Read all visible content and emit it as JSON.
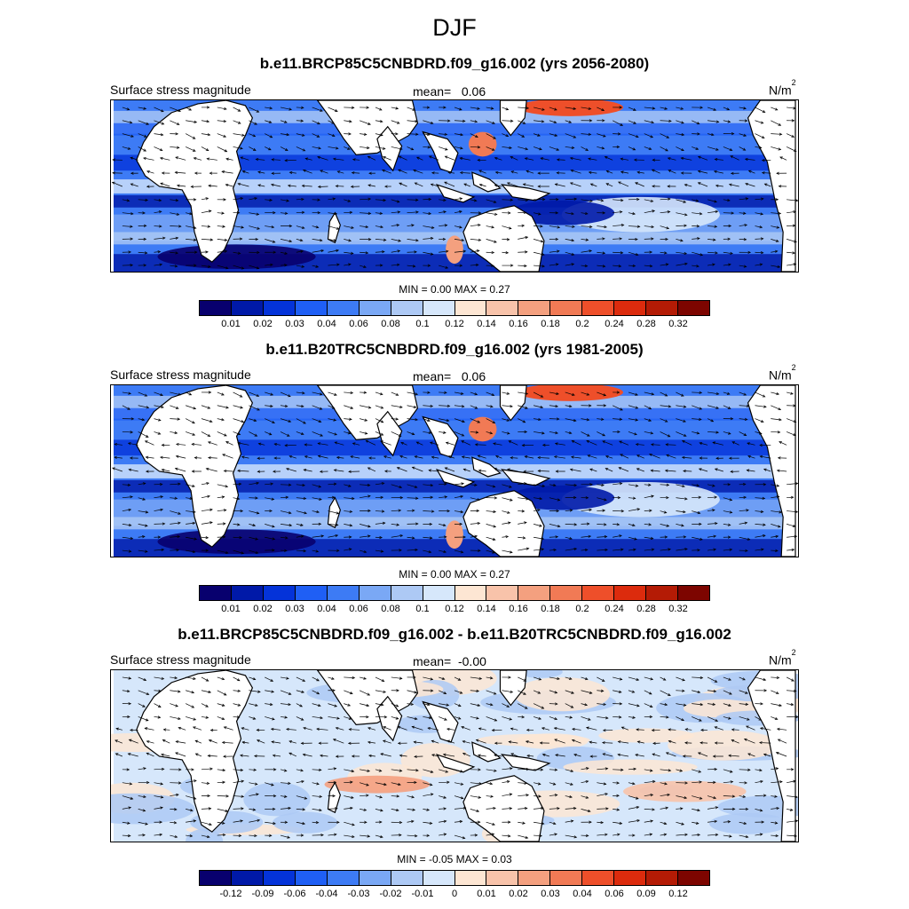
{
  "title": "DJF",
  "palette": [
    "#08006e",
    "#0019a8",
    "#0433d9",
    "#1f5ff5",
    "#3d7bf5",
    "#7aa8f5",
    "#adc9f5",
    "#d6e7fb",
    "#fde6d3",
    "#f8c3aa",
    "#f4a07f",
    "#f17a55",
    "#ee4f2a",
    "#dc2b0d",
    "#b41b05",
    "#7d0500"
  ],
  "land_color": "#ffffff",
  "panels": [
    {
      "title": "b.e11.BRCP85C5CNBDRD.f09_g16.002 (yrs 2056-2080)",
      "variable": "Surface stress magnitude",
      "mean_label": "mean=",
      "mean_value": "0.06",
      "unit": "N/m",
      "unit_exp": "2",
      "minmax": "MIN =   0.00 MAX =   0.27",
      "levels": [
        "0.01",
        "0.02",
        "0.03",
        "0.04",
        "0.06",
        "0.08",
        "0.1",
        "0.12",
        "0.14",
        "0.16",
        "0.18",
        "0.2",
        "0.24",
        "0.28",
        "0.32"
      ]
    },
    {
      "title": "b.e11.B20TRC5CNBDRD.f09_g16.002 (yrs 1981-2005)",
      "variable": "Surface stress magnitude",
      "mean_label": "mean=",
      "mean_value": "0.06",
      "unit": "N/m",
      "unit_exp": "2",
      "minmax": "MIN =   0.00 MAX =   0.27",
      "levels": [
        "0.01",
        "0.02",
        "0.03",
        "0.04",
        "0.06",
        "0.08",
        "0.1",
        "0.12",
        "0.14",
        "0.16",
        "0.18",
        "0.2",
        "0.24",
        "0.28",
        "0.32"
      ]
    },
    {
      "title": "b.e11.BRCP85C5CNBDRD.f09_g16.002 - b.e11.B20TRC5CNBDRD.f09_g16.002",
      "variable": "Surface stress magnitude",
      "mean_label": "mean=",
      "mean_value": "-0.00",
      "unit": "N/m",
      "unit_exp": "2",
      "minmax": "MIN =  -0.05 MAX =   0.03",
      "levels": [
        "-0.12",
        "-0.09",
        "-0.06",
        "-0.04",
        "-0.03",
        "-0.02",
        "-0.01",
        "0",
        "0.01",
        "0.02",
        "0.03",
        "0.04",
        "0.06",
        "0.09",
        "0.12"
      ]
    }
  ]
}
